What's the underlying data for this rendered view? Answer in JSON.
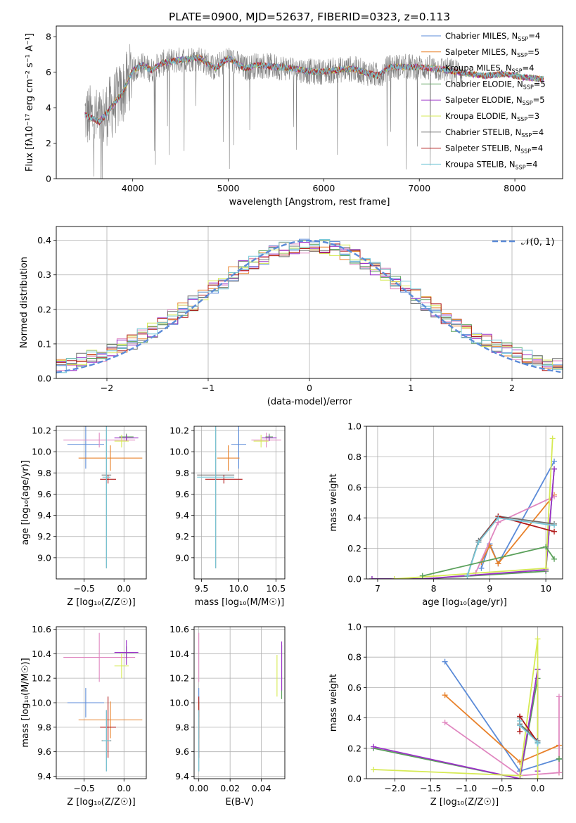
{
  "figure": {
    "title": "PLATE=0900, MJD=52637, FIBERID=0323, z=0.113"
  },
  "colors": {
    "chabrier_miles": "#5b8bd8",
    "salpeter_miles": "#e8812a",
    "kroupa_miles": "#e087c0",
    "chabrier_elodie": "#5aa05a",
    "salpeter_elodie": "#9b30c8",
    "kroupa_elodie": "#d6ea54",
    "chabrier_stelib": "#707070",
    "salpeter_stelib": "#b01818",
    "kroupa_stelib": "#78c8d8",
    "gauss": "#5b8bd8",
    "data": "#808080"
  },
  "chart_data": [
    {
      "id": "spectrum",
      "type": "line",
      "xlabel": "wavelength [Angstrom, rest frame]",
      "ylabel": "Flux [fλ10⁻¹⁷ erg cm⁻² s⁻¹ A⁻¹]",
      "xlim": [
        3200,
        8500
      ],
      "ylim": [
        0,
        8.6
      ],
      "xticks": [
        "4000",
        "5000",
        "6000",
        "7000",
        "8000"
      ],
      "yticks": [
        "0",
        "2",
        "4",
        "6",
        "8"
      ],
      "legend_position": "top-right",
      "legend": [
        {
          "pre": "Chabrier MILES, N",
          "sub": "SSP",
          "post": "=4",
          "color": "chabrier_miles"
        },
        {
          "pre": "Salpeter MILES, N",
          "sub": "SSP",
          "post": "=5",
          "color": "salpeter_miles"
        },
        {
          "pre": "Kroupa MILES, N",
          "sub": "SSP",
          "post": "=4",
          "color": "kroupa_miles"
        },
        {
          "pre": "Chabrier ELODIE, N",
          "sub": "SSP",
          "post": "=5",
          "color": "chabrier_elodie"
        },
        {
          "pre": "Salpeter ELODIE, N",
          "sub": "SSP",
          "post": "=5",
          "color": "salpeter_elodie"
        },
        {
          "pre": "Kroupa ELODIE, N",
          "sub": "SSP",
          "post": "=3",
          "color": "kroupa_elodie"
        },
        {
          "pre": "Chabrier STELIB, N",
          "sub": "SSP",
          "post": "=4",
          "color": "chabrier_stelib"
        },
        {
          "pre": "Salpeter STELIB, N",
          "sub": "SSP",
          "post": "=4",
          "color": "salpeter_stelib"
        },
        {
          "pre": "Kroupa STELIB, N",
          "sub": "SSP",
          "post": "=4",
          "color": "kroupa_stelib"
        }
      ],
      "continuum": [
        [
          3500,
          3.6
        ],
        [
          3650,
          3.2
        ],
        [
          3700,
          3.5
        ],
        [
          3800,
          4.2
        ],
        [
          3900,
          4.9
        ],
        [
          4000,
          6.1
        ],
        [
          4100,
          6.4
        ],
        [
          4200,
          6.1
        ],
        [
          4300,
          6.5
        ],
        [
          4500,
          6.7
        ],
        [
          4700,
          6.8
        ],
        [
          4861,
          6.2
        ],
        [
          5000,
          6.8
        ],
        [
          5175,
          6.2
        ],
        [
          5300,
          6.4
        ],
        [
          5500,
          6.3
        ],
        [
          5700,
          6.2
        ],
        [
          5890,
          6.0
        ],
        [
          6100,
          6.1
        ],
        [
          6300,
          6.2
        ],
        [
          6563,
          5.8
        ],
        [
          6700,
          6.3
        ],
        [
          6900,
          6.3
        ],
        [
          7200,
          6.2
        ],
        [
          7500,
          5.9
        ],
        [
          7700,
          5.8
        ],
        [
          7900,
          5.9
        ],
        [
          8100,
          5.7
        ],
        [
          8300,
          5.6
        ]
      ],
      "data_xrange": [
        3500,
        7450
      ],
      "model_xrange": [
        3500,
        8300
      ]
    },
    {
      "id": "residuals",
      "type": "step",
      "xlabel": "(data-model)/error",
      "ylabel": "Normed distribution",
      "xlim": [
        -2.5,
        2.5
      ],
      "ylim": [
        0,
        0.44
      ],
      "xticks": [
        "−2",
        "−1",
        "0",
        "1",
        "2"
      ],
      "yticks": [
        "0.0",
        "0.1",
        "0.2",
        "0.3",
        "0.4"
      ],
      "legend": "𝒩(0, 1)",
      "bin_start": -2.5,
      "bin_width": 0.1
    },
    {
      "id": "age_vs_Z",
      "type": "errorbar",
      "xlabel": "Z [log₁₀(Z/Z☉)]",
      "ylabel": "age  [log₁₀(age/yr)]",
      "xlim": [
        -0.85,
        0.28
      ],
      "ylim": [
        8.8,
        10.24
      ],
      "xticks": [
        "−0.5",
        "0.0"
      ],
      "yticks": [
        "9.0",
        "9.2",
        "9.4",
        "9.6",
        "9.8",
        "10.0",
        "10.2"
      ],
      "points": [
        {
          "c": "chabrier_miles",
          "x": -0.48,
          "xe": 0.23,
          "y": 10.07,
          "ye": 0.23
        },
        {
          "c": "salpeter_miles",
          "x": -0.17,
          "xe": 0.4,
          "y": 9.94,
          "ye": 0.12
        },
        {
          "c": "kroupa_miles",
          "x": -0.31,
          "xe": 0.45,
          "y": 10.11,
          "ye": 0.07
        },
        {
          "c": "chabrier_elodie",
          "x": 0.03,
          "xe": 0.09,
          "y": 10.14,
          "ye": 0.03
        },
        {
          "c": "salpeter_elodie",
          "x": 0.03,
          "xe": 0.15,
          "y": 10.13,
          "ye": 0.03
        },
        {
          "c": "kroupa_elodie",
          "x": -0.03,
          "xe": 0.09,
          "y": 10.1,
          "ye": 0.06
        },
        {
          "c": "chabrier_stelib",
          "x": -0.22,
          "xe": 0.06,
          "y": 9.78,
          "ye": 0.88
        },
        {
          "c": "salpeter_stelib",
          "x": -0.2,
          "xe": 0.1,
          "y": 9.74,
          "ye": 0.04
        },
        {
          "c": "kroupa_stelib",
          "x": -0.22,
          "xe": 0.05,
          "y": 9.76,
          "ye": 0.86
        }
      ]
    },
    {
      "id": "age_vs_mass",
      "type": "errorbar",
      "xlabel": "mass [log₁₀(M/M☉)]",
      "ylabel": "",
      "xlim": [
        9.4,
        10.62
      ],
      "ylim": [
        8.8,
        10.24
      ],
      "xticks": [
        "9.5",
        "10.0",
        "10.5"
      ],
      "yticks": [
        "9.0",
        "9.2",
        "9.4",
        "9.6",
        "9.8",
        "10.0",
        "10.2"
      ],
      "points": [
        {
          "c": "chabrier_miles",
          "x": 10.0,
          "xe": 0.1,
          "y": 10.07,
          "ye": 0.23
        },
        {
          "c": "salpeter_miles",
          "x": 9.86,
          "xe": 0.15,
          "y": 9.94,
          "ye": 0.12
        },
        {
          "c": "kroupa_miles",
          "x": 10.37,
          "xe": 0.2,
          "y": 10.11,
          "ye": 0.07
        },
        {
          "c": "chabrier_elodie",
          "x": 10.41,
          "xe": 0.05,
          "y": 10.14,
          "ye": 0.03
        },
        {
          "c": "salpeter_elodie",
          "x": 10.41,
          "xe": 0.1,
          "y": 10.13,
          "ye": 0.03
        },
        {
          "c": "kroupa_elodie",
          "x": 10.3,
          "xe": 0.1,
          "y": 10.1,
          "ye": 0.06
        },
        {
          "c": "chabrier_stelib",
          "x": 9.69,
          "xe": 0.25,
          "y": 9.78,
          "ye": 0.88
        },
        {
          "c": "salpeter_stelib",
          "x": 9.8,
          "xe": 0.25,
          "y": 9.74,
          "ye": 0.04
        },
        {
          "c": "kroupa_stelib",
          "x": 9.69,
          "xe": 0.25,
          "y": 9.76,
          "ye": 0.86
        }
      ]
    },
    {
      "id": "weight_vs_age",
      "type": "line",
      "xlabel": "age  [log₁₀(age/yr)]",
      "ylabel": "mass weight",
      "xlim": [
        6.8,
        10.3
      ],
      "ylim": [
        0,
        1.0
      ],
      "xticks": [
        "7",
        "8",
        "9",
        "10"
      ],
      "yticks": [
        "0.0",
        "0.2",
        "0.4",
        "0.6",
        "0.8",
        "1.0"
      ],
      "series": [
        {
          "c": "chabrier_miles",
          "x": [
            8.85,
            9.0,
            9.15,
            10.15
          ],
          "y": [
            0.07,
            0.23,
            0.1,
            0.77
          ]
        },
        {
          "c": "salpeter_miles",
          "x": [
            8.85,
            9.0,
            9.15,
            10.15
          ],
          "y": [
            0.11,
            0.22,
            0.1,
            0.55
          ]
        },
        {
          "c": "kroupa_miles",
          "x": [
            8.75,
            9.15,
            10.15
          ],
          "y": [
            0.04,
            0.37,
            0.54
          ]
        },
        {
          "c": "chabrier_elodie",
          "x": [
            6.9,
            7.8,
            10.0,
            10.15
          ],
          "y": [
            0.0,
            0.0,
            0.05,
            0.72
          ]
        },
        {
          "c": "salpeter_elodie",
          "x": [
            6.9,
            7.8,
            10.0,
            10.15
          ],
          "y": [
            0.0,
            0.0,
            0.06,
            0.72
          ]
        },
        {
          "c": "kroupa_elodie",
          "x": [
            7.3,
            10.0,
            10.12
          ],
          "y": [
            0.0,
            0.07,
            0.92
          ]
        },
        {
          "c": "chabrier_stelib",
          "x": [
            8.6,
            8.8,
            9.15,
            10.15
          ],
          "y": [
            0.02,
            0.25,
            0.41,
            0.36
          ]
        },
        {
          "c": "salpeter_stelib",
          "x": [
            8.8,
            9.15,
            10.15
          ],
          "y": [
            0.24,
            0.41,
            0.31
          ]
        },
        {
          "c": "kroupa_stelib",
          "x": [
            8.6,
            8.8,
            9.15,
            10.15
          ],
          "y": [
            0.02,
            0.24,
            0.4,
            0.35
          ]
        },
        {
          "c": "chabrier_elodie",
          "x": [
            7.8,
            10.0,
            10.15
          ],
          "y": [
            0.02,
            0.21,
            0.13
          ]
        }
      ]
    },
    {
      "id": "mass_vs_Z",
      "type": "errorbar",
      "xlabel": "Z [log₁₀(Z/Z☉)]",
      "ylabel": "mass [log₁₀(M/M☉)]",
      "xlim": [
        -0.85,
        0.28
      ],
      "ylim": [
        9.38,
        10.62
      ],
      "xticks": [
        "−0.5",
        "0.0"
      ],
      "yticks": [
        "9.4",
        "9.6",
        "9.8",
        "10.0",
        "10.2",
        "10.4",
        "10.6"
      ],
      "points": [
        {
          "c": "chabrier_miles",
          "x": -0.48,
          "xe": 0.23,
          "y": 10.0,
          "ye": 0.12
        },
        {
          "c": "salpeter_miles",
          "x": -0.17,
          "xe": 0.4,
          "y": 9.86,
          "ye": 0.15
        },
        {
          "c": "kroupa_miles",
          "x": -0.31,
          "xe": 0.45,
          "y": 10.37,
          "ye": 0.2
        },
        {
          "c": "chabrier_elodie",
          "x": 0.03,
          "xe": 0.09,
          "y": 10.41,
          "ye": 0.05
        },
        {
          "c": "salpeter_elodie",
          "x": 0.03,
          "xe": 0.15,
          "y": 10.41,
          "ye": 0.1
        },
        {
          "c": "kroupa_elodie",
          "x": -0.03,
          "xe": 0.09,
          "y": 10.3,
          "ye": 0.1
        },
        {
          "c": "chabrier_stelib",
          "x": -0.22,
          "xe": 0.06,
          "y": 9.69,
          "ye": 0.25
        },
        {
          "c": "salpeter_stelib",
          "x": -0.2,
          "xe": 0.1,
          "y": 9.8,
          "ye": 0.25
        },
        {
          "c": "kroupa_stelib",
          "x": -0.22,
          "xe": 0.05,
          "y": 9.69,
          "ye": 0.25
        }
      ]
    },
    {
      "id": "mass_vs_EBV",
      "type": "errorbar",
      "xlabel": "E(B-V)",
      "ylabel": "",
      "xlim": [
        -0.003,
        0.055
      ],
      "ylim": [
        9.38,
        10.62
      ],
      "xticks": [
        "0.00",
        "0.02",
        "0.04"
      ],
      "yticks": [
        "9.4",
        "9.6",
        "9.8",
        "10.0",
        "10.2",
        "10.4",
        "10.6"
      ],
      "points": [
        {
          "c": "chabrier_miles",
          "x": 0.0,
          "xe": 0.0,
          "y": 10.0,
          "ye": 0.12
        },
        {
          "c": "salpeter_miles",
          "x": 0.0,
          "xe": 0.0,
          "y": 9.86,
          "ye": 0.15
        },
        {
          "c": "kroupa_miles",
          "x": 0.0,
          "xe": 0.0,
          "y": 10.37,
          "ye": 0.2
        },
        {
          "c": "chabrier_elodie",
          "x": 0.053,
          "xe": 0.0,
          "y": 10.25,
          "ye": 0.22
        },
        {
          "c": "salpeter_elodie",
          "x": 0.053,
          "xe": 0.0,
          "y": 10.3,
          "ye": 0.2
        },
        {
          "c": "kroupa_elodie",
          "x": 0.05,
          "xe": 0.0,
          "y": 10.22,
          "ye": 0.17
        },
        {
          "c": "chabrier_stelib",
          "x": 0.0,
          "xe": 0.0,
          "y": 9.69,
          "ye": 0.25
        },
        {
          "c": "salpeter_stelib",
          "x": 0.0,
          "xe": 0.0,
          "y": 9.8,
          "ye": 0.25
        },
        {
          "c": "kroupa_stelib",
          "x": 0.0,
          "xe": 0.0,
          "y": 9.69,
          "ye": 0.25
        }
      ]
    },
    {
      "id": "weight_vs_Z",
      "type": "line",
      "xlabel": "Z [log₁₀(Z/Z☉)]",
      "ylabel": "mass weight",
      "xlim": [
        -2.4,
        0.35
      ],
      "ylim": [
        0,
        1.0
      ],
      "xticks": [
        "−2.0",
        "−1.5",
        "−1.0",
        "−0.5",
        "0.0"
      ],
      "yticks": [
        "0.0",
        "0.2",
        "0.4",
        "0.6",
        "0.8",
        "1.0"
      ],
      "series": [
        {
          "c": "chabrier_miles",
          "x": [
            -1.3,
            -0.25,
            0.3,
            0.3
          ],
          "y": [
            0.77,
            0.05,
            0.13,
            0.13
          ]
        },
        {
          "c": "salpeter_miles",
          "x": [
            -1.3,
            -0.25,
            0.3,
            0.3
          ],
          "y": [
            0.55,
            0.11,
            0.22,
            0.04
          ]
        },
        {
          "c": "kroupa_miles",
          "x": [
            -1.3,
            -0.25,
            0.3,
            0.3
          ],
          "y": [
            0.37,
            0.02,
            0.04,
            0.54
          ]
        },
        {
          "c": "chabrier_elodie",
          "x": [
            -2.3,
            -0.25,
            0.0,
            0.0
          ],
          "y": [
            0.2,
            0.0,
            0.66,
            0.72
          ]
        },
        {
          "c": "salpeter_elodie",
          "x": [
            -2.3,
            -0.25,
            0.0,
            0.0
          ],
          "y": [
            0.21,
            0.0,
            0.72,
            0.05
          ]
        },
        {
          "c": "kroupa_elodie",
          "x": [
            -2.3,
            -0.25,
            0.0,
            0.0
          ],
          "y": [
            0.06,
            0.02,
            0.92,
            0.0
          ]
        },
        {
          "c": "chabrier_stelib",
          "x": [
            -0.25,
            -0.25,
            0.0,
            0.0
          ],
          "y": [
            0.4,
            0.36,
            0.25,
            0.24
          ]
        },
        {
          "c": "salpeter_stelib",
          "x": [
            -0.25,
            -0.25,
            0.0
          ],
          "y": [
            0.31,
            0.41,
            0.24
          ]
        },
        {
          "c": "kroupa_stelib",
          "x": [
            -0.25,
            -0.25,
            0.0,
            0.0
          ],
          "y": [
            0.38,
            0.35,
            0.24,
            0.23
          ]
        },
        {
          "c": "chabrier_elodie",
          "x": [
            0.3,
            0.3
          ],
          "y": [
            0.13,
            0.13
          ]
        }
      ]
    }
  ]
}
